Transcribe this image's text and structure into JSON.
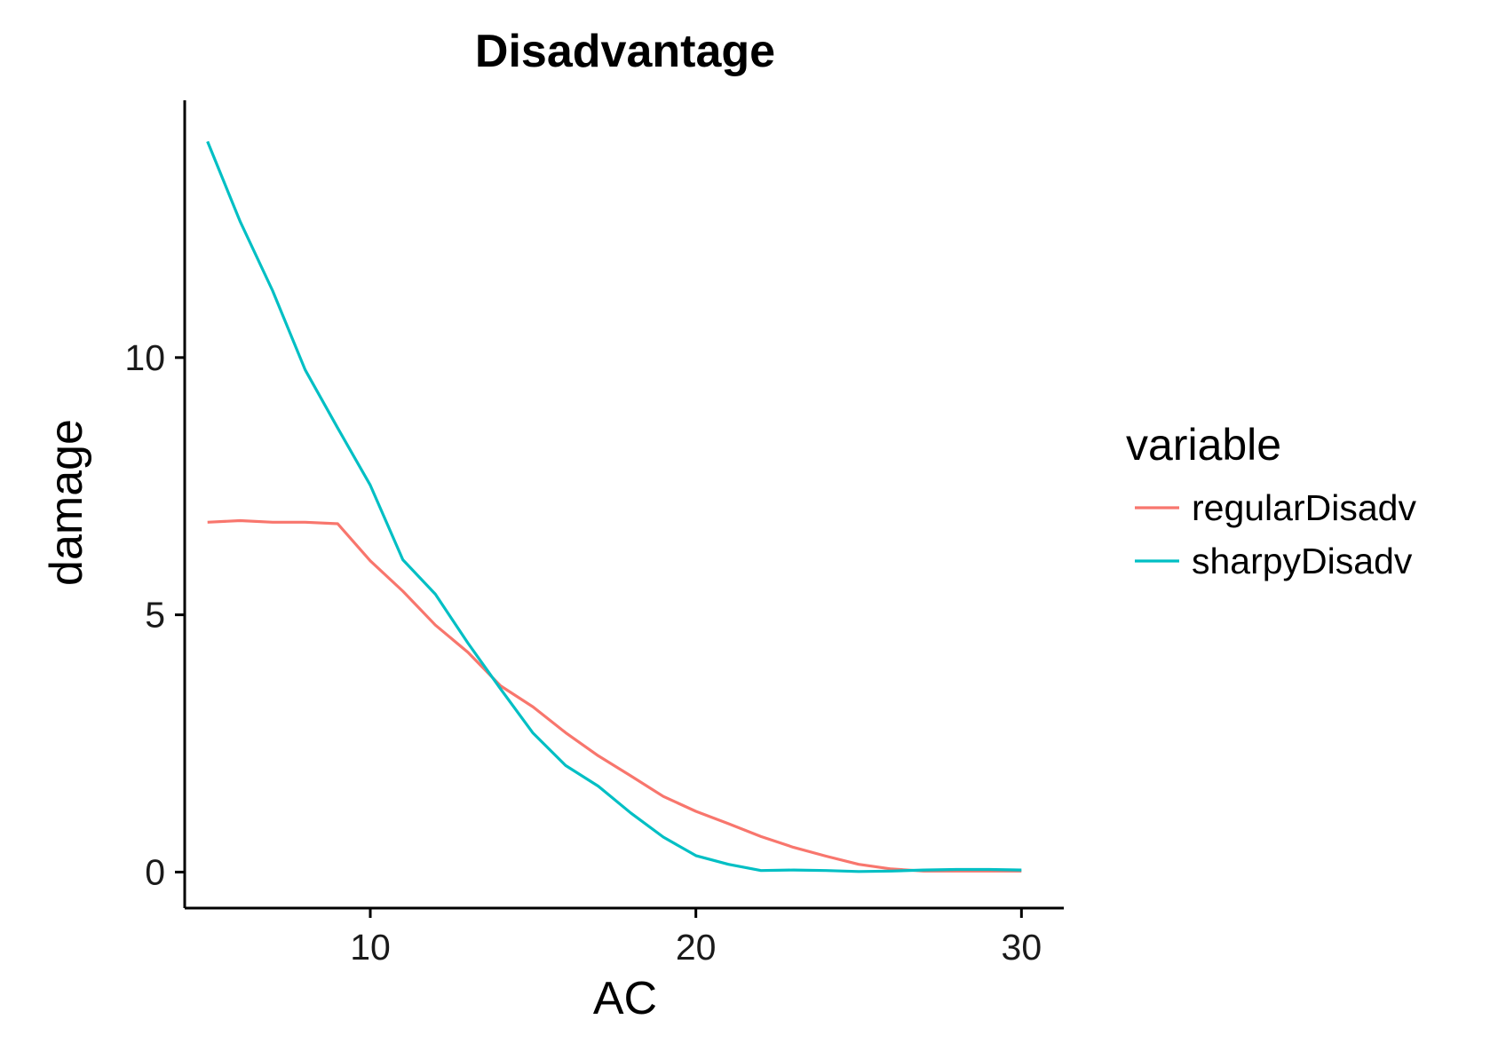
{
  "chart_data": {
    "type": "line",
    "title": "Disadvantage",
    "xlabel": "AC",
    "ylabel": "damage",
    "xlim": [
      4.3,
      31.3
    ],
    "ylim": [
      -0.7,
      15
    ],
    "x_ticks": [
      10,
      20,
      30
    ],
    "y_ticks": [
      0,
      5,
      10
    ],
    "grid": false,
    "legend": {
      "title": "variable",
      "position": "right"
    },
    "x": [
      5,
      6,
      7,
      8,
      9,
      10,
      11,
      12,
      13,
      14,
      15,
      16,
      17,
      18,
      19,
      20,
      21,
      22,
      23,
      24,
      25,
      26,
      27,
      28,
      29,
      30
    ],
    "series": [
      {
        "name": "regularDisadv",
        "color": "#F8766D",
        "values": [
          6.8,
          6.83,
          6.8,
          6.8,
          6.77,
          6.05,
          5.46,
          4.8,
          4.27,
          3.62,
          3.21,
          2.71,
          2.26,
          1.87,
          1.47,
          1.18,
          0.94,
          0.69,
          0.48,
          0.31,
          0.15,
          0.06,
          0.02,
          0.02,
          0.02,
          0.02
        ]
      },
      {
        "name": "sharpyDisadv",
        "color": "#00BFC4",
        "values": [
          14.2,
          12.65,
          11.3,
          9.76,
          8.63,
          7.52,
          6.07,
          5.4,
          4.45,
          3.56,
          2.7,
          2.07,
          1.67,
          1.15,
          0.68,
          0.32,
          0.15,
          0.03,
          0.04,
          0.03,
          0.01,
          0.02,
          0.04,
          0.05,
          0.05,
          0.04
        ]
      }
    ]
  }
}
